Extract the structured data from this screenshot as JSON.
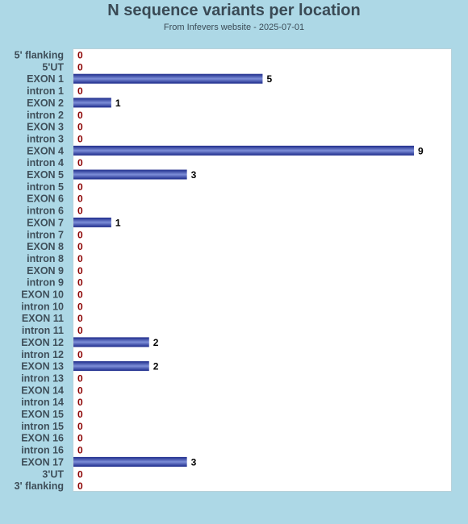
{
  "chart_data": {
    "type": "bar",
    "orientation": "horizontal",
    "title": "N sequence variants per location",
    "subtitle": "From Infevers website - 2025-07-01",
    "categories": [
      "5' flanking",
      "5'UT",
      "EXON 1",
      "intron 1",
      "EXON 2",
      "intron 2",
      "EXON 3",
      "intron 3",
      "EXON 4",
      "intron 4",
      "EXON 5",
      "intron 5",
      "EXON 6",
      "intron 6",
      "EXON 7",
      "intron 7",
      "EXON 8",
      "intron 8",
      "EXON 9",
      "intron 9",
      "EXON 10",
      "intron 10",
      "EXON 11",
      "intron 11",
      "EXON 12",
      "intron 12",
      "EXON 13",
      "intron 13",
      "EXON 14",
      "intron 14",
      "EXON 15",
      "intron 15",
      "EXON 16",
      "intron 16",
      "EXON 17",
      "3'UT",
      "3' flanking"
    ],
    "values": [
      0,
      0,
      5,
      0,
      1,
      0,
      0,
      0,
      9,
      0,
      3,
      0,
      0,
      0,
      1,
      0,
      0,
      0,
      0,
      0,
      0,
      0,
      0,
      0,
      2,
      0,
      2,
      0,
      0,
      0,
      0,
      0,
      0,
      0,
      3,
      0,
      0
    ],
    "xlim": [
      0,
      10
    ],
    "grid": false,
    "colors": {
      "bar_dark": "#1c2a8a",
      "bar_light": "#7d8ed8",
      "value_label": "#000000",
      "zero_label": "#8b0000"
    }
  }
}
